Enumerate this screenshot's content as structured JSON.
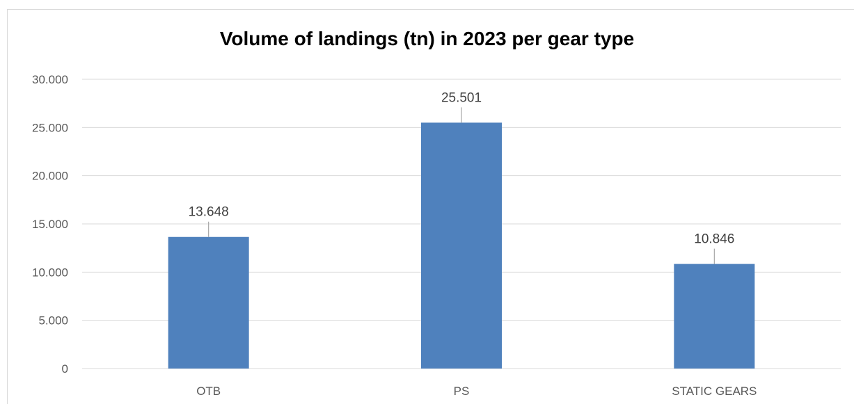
{
  "chart_data": {
    "type": "bar",
    "title": "Volume of landings (tn) in 2023 per gear type",
    "categories": [
      "OTB",
      "PS",
      "STATIC GEARS"
    ],
    "values": [
      13648,
      25501,
      10846
    ],
    "data_labels": [
      "13.648",
      "25.501",
      "10.846"
    ],
    "ylim": [
      0,
      30000
    ],
    "yticks": [
      0,
      5000,
      10000,
      15000,
      20000,
      25000,
      30000
    ],
    "ytick_labels": [
      "0",
      "5.000",
      "10.000",
      "15.000",
      "20.000",
      "25.000",
      "30.000"
    ],
    "xlabel": "",
    "ylabel": "",
    "grid": true,
    "legend": "none",
    "bar_color": "#4f81bd",
    "grid_color": "#d9d9d9"
  }
}
